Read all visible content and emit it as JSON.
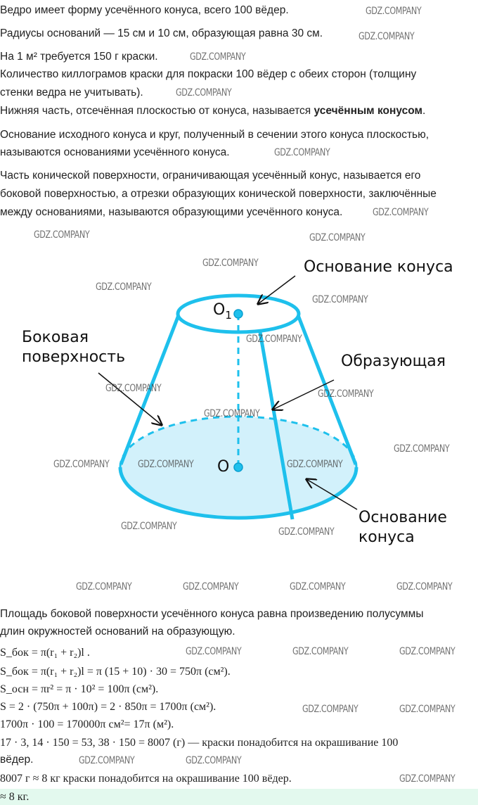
{
  "watermark": "GDZ.COMPANY",
  "problem": [
    "Ведро имеет форму усечённого конуса, всего 100 вёдер.",
    "Радиусы оснований — 15 см и 10 см, образующая равна 30 см.",
    "На 1 м² требуется 150 г краски.",
    "Количество киллограмов краски для покраски 100 вёдер с обеих сторон (толщину",
    "стенки ведра не учитывать)."
  ],
  "theory": {
    "line1_pre": "Нижняя часть, отсечённая плоскостью от конуса, называется ",
    "line1_bold": "усечённым конусом",
    "line1_post": ".",
    "line2": "Основание исходного конуса и круг, полученный в сечении этого конуса плоскостью,",
    "line3": "называются основаниями усечённого конуса.",
    "line4": "Часть конической поверхности, ограничивающая усечённый конус, называется его",
    "line5": "боковой поверхностью, а отрезки образующих конической поверхности, заключённые",
    "line6": "между основаниями, называются образующими усечённого конуса."
  },
  "diagram": {
    "top_base_label": "Основание конуса",
    "o1": "O",
    "o1_sub": "1",
    "lateral_label_1": "Боковая",
    "lateral_label_2": "поверхность",
    "generatrix_label": "Образующая",
    "o": "O",
    "bottom_base_label_1": "Основание",
    "bottom_base_label_2": "конуса",
    "stroke_color": "#1ec0ec",
    "fill_color": "#d2f1fb"
  },
  "solution": {
    "text1": "Площадь боковой поверхности усечённого конуса равна произведению полусуммы",
    "text2": "длин окружностей оснований на образующую.",
    "f1": "S_бок = π(r₁ + r₂)l .",
    "f2": "S_бок = π(r₁ + r₂)l = π (15 + 10) · 30 = 750π (см²).",
    "f3": "S_осн = πr² = π · 10² = 100π (см²).",
    "f4": "S = 2 · (750π + 100π) = 2 · 850π = 1700π (см²).",
    "f5": "1700π · 100 = 170000π см²= 17π (м²).",
    "f6": "17 · 3, 14 · 150 = 53, 38 · 150 = 8007 (г) — краски понадобится на окрашивание 100",
    "f6b": "вёдер.",
    "f7": "8007 г ≈ 8 кг краски понадобится на окрашивание 100 вёдер.",
    "answer": "≈ 8 кг.",
    "answer_bg": "#e3f9ee"
  }
}
